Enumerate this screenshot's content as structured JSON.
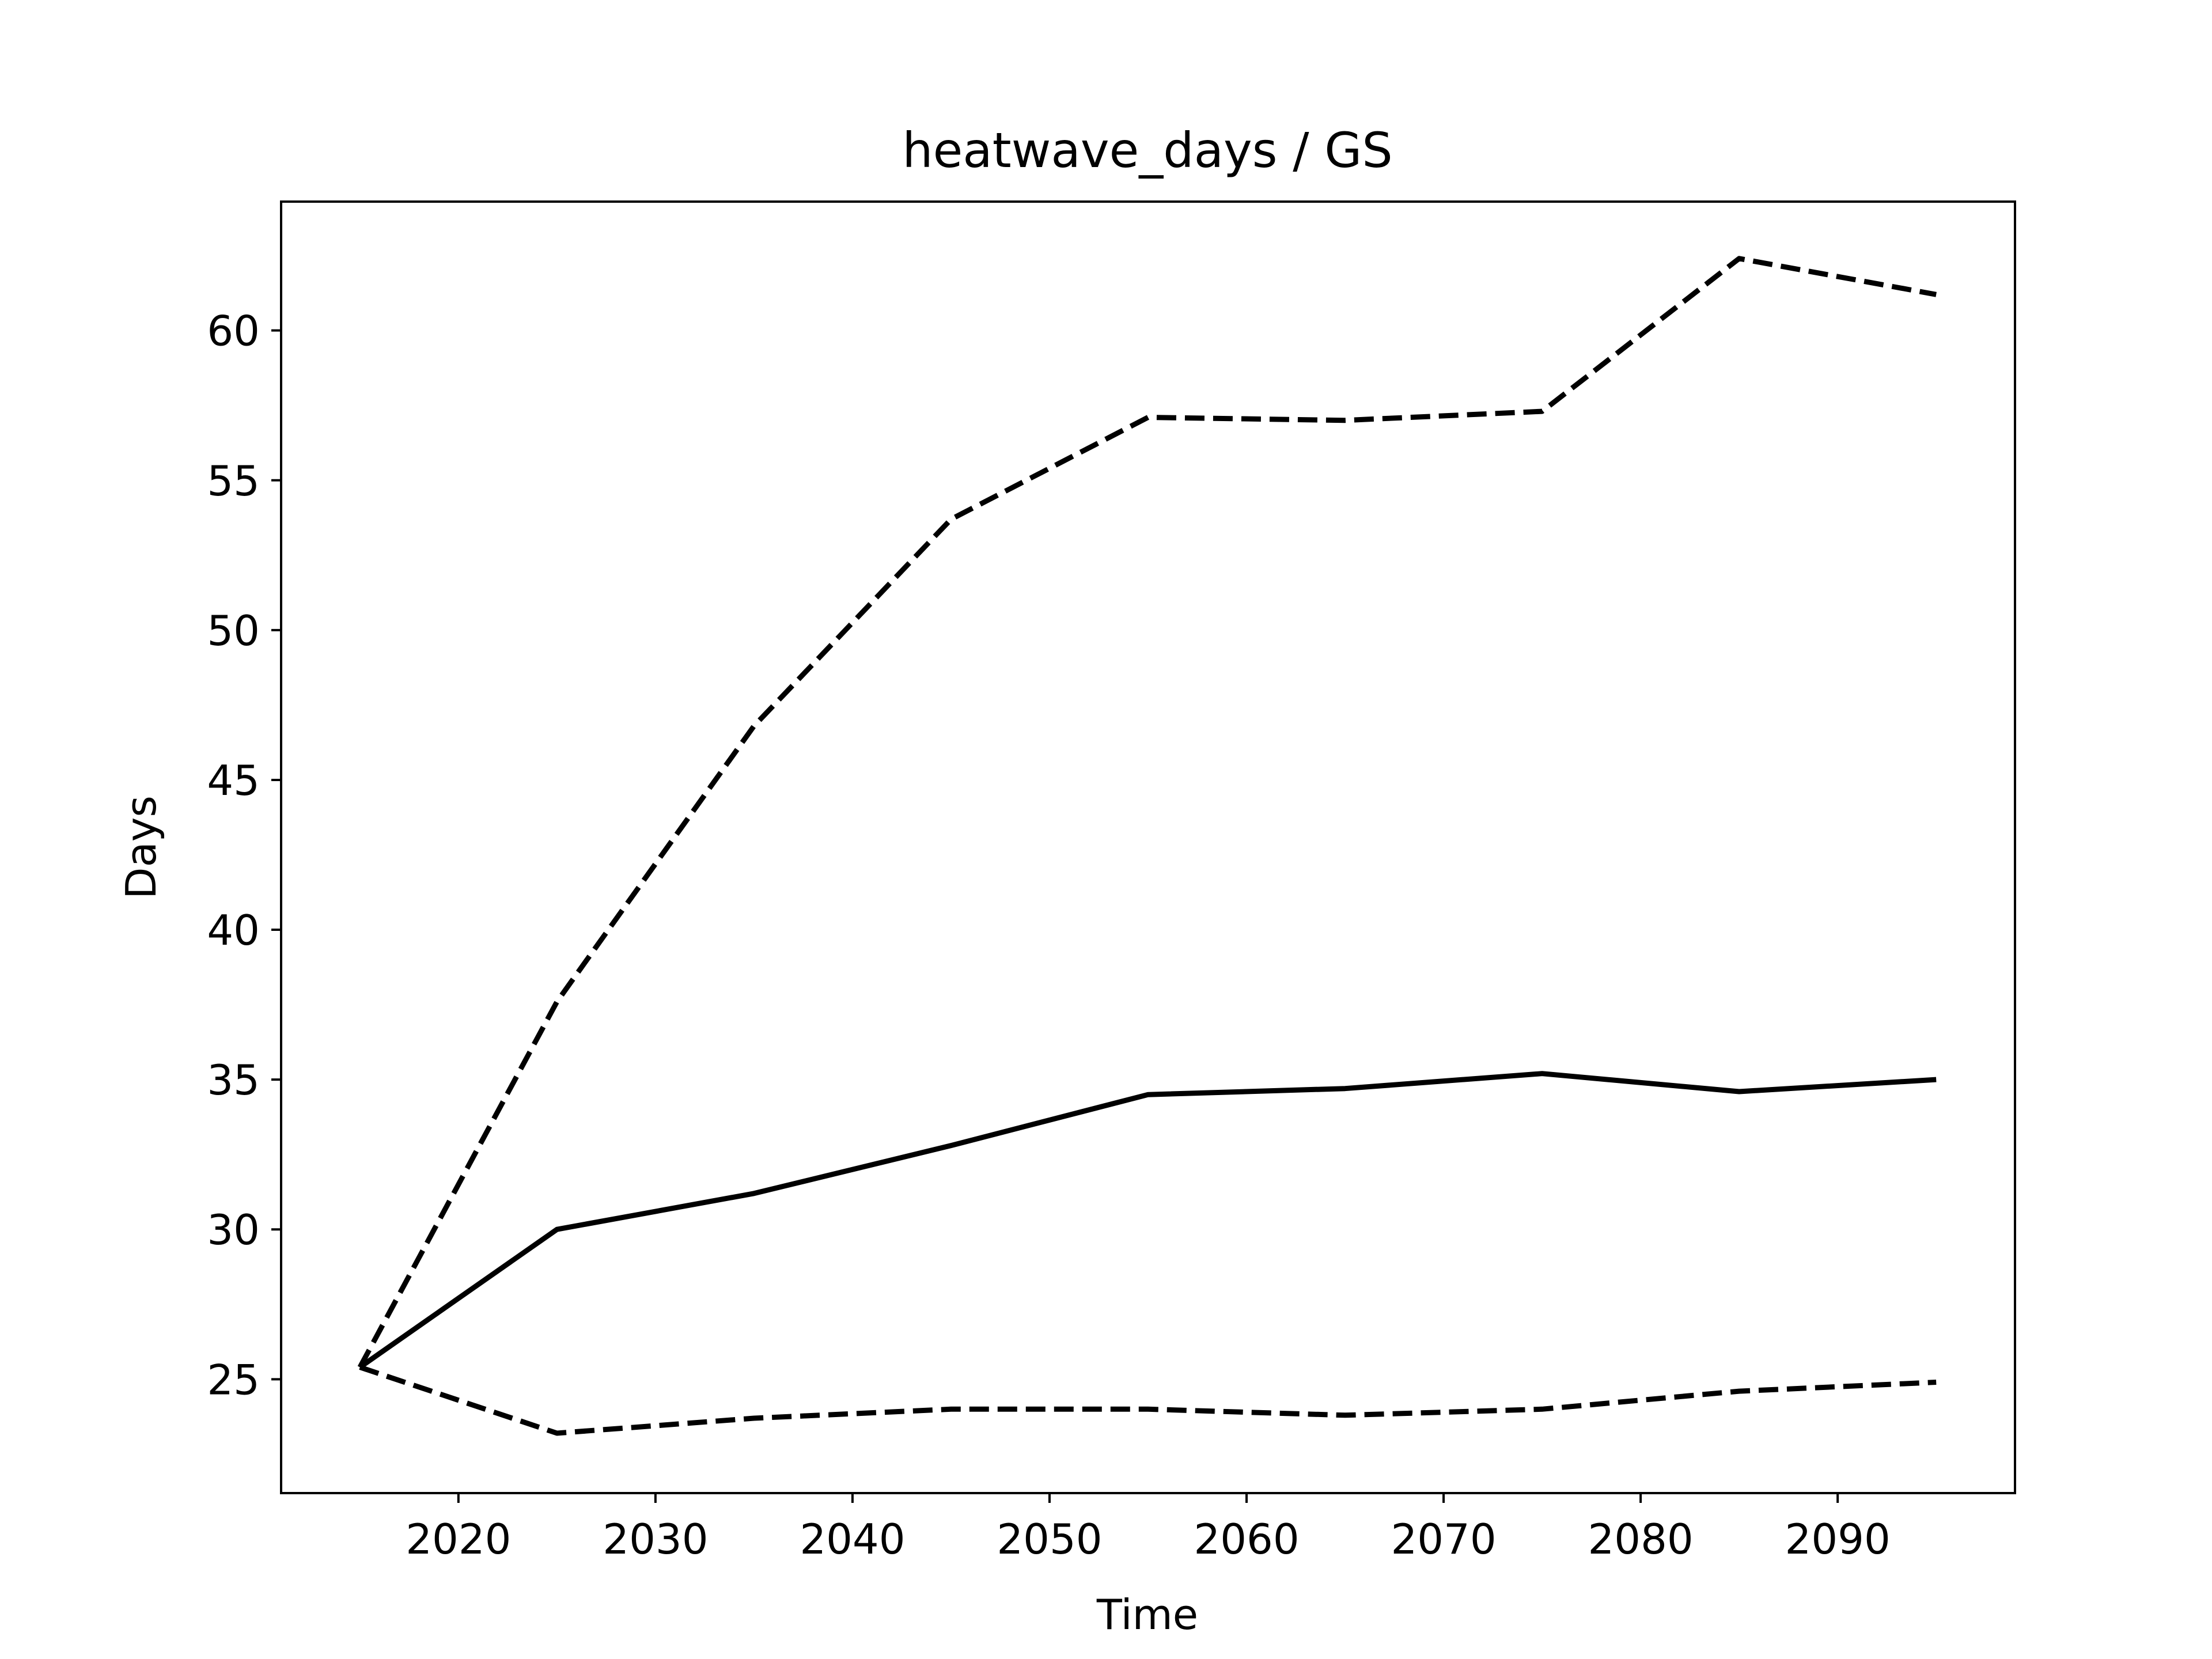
{
  "chart_data": {
    "type": "line",
    "title": "heatwave_days / GS",
    "xlabel": "Time",
    "ylabel": "Days",
    "xlim": [
      2011,
      2099
    ],
    "ylim": [
      21.2,
      64.3
    ],
    "xticks": [
      2020,
      2030,
      2040,
      2050,
      2060,
      2070,
      2080,
      2090
    ],
    "yticks": [
      25,
      30,
      35,
      40,
      45,
      50,
      55,
      60
    ],
    "grid": false,
    "legend": "none",
    "x": [
      2015,
      2025,
      2035,
      2045,
      2055,
      2065,
      2075,
      2085,
      2095
    ],
    "series": [
      {
        "style": "dashed",
        "color": "#000000",
        "values": [
          25.4,
          37.6,
          46.8,
          53.7,
          57.1,
          57.0,
          57.3,
          62.4,
          61.2
        ]
      },
      {
        "style": "solid",
        "color": "#000000",
        "values": [
          25.4,
          30.0,
          31.2,
          32.8,
          34.5,
          34.7,
          35.2,
          34.6,
          35.0
        ]
      },
      {
        "style": "dashed",
        "color": "#000000",
        "values": [
          25.4,
          23.2,
          23.7,
          24.0,
          24.0,
          23.8,
          24.0,
          24.6,
          24.9
        ]
      }
    ]
  }
}
